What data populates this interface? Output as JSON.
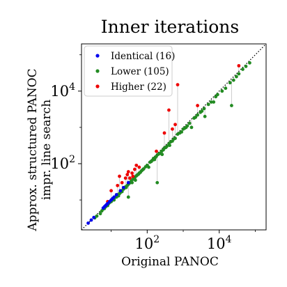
{
  "chart_data": {
    "type": "scatter",
    "title": "Inner iterations",
    "xlabel": "Original PANOC",
    "ylabel_lines": [
      "Approx. structured PANOC",
      "impr. line search"
    ],
    "xscale": "log",
    "yscale": "log",
    "xlim": [
      1.5,
      200000
    ],
    "ylim": [
      1.5,
      200000
    ],
    "x_ticks": [
      {
        "value": 100,
        "base": "10",
        "exp": "2"
      },
      {
        "value": 10000,
        "base": "10",
        "exp": "4"
      }
    ],
    "y_ticks": [
      {
        "value": 100,
        "base": "10",
        "exp": "2"
      },
      {
        "value": 10000,
        "base": "10",
        "exp": "4"
      }
    ],
    "diagonal": "y = x (dotted)",
    "legend_position": "upper-left",
    "series": [
      {
        "name": "Identical (16)",
        "color": "#0000ee",
        "points": [
          [
            2.3,
            2.3
          ],
          [
            2.8,
            2.8
          ],
          [
            3.3,
            3.3
          ],
          [
            6,
            6
          ],
          [
            6.5,
            6.5
          ],
          [
            7,
            7
          ],
          [
            7.5,
            7.5
          ],
          [
            8,
            8
          ],
          [
            9,
            9
          ],
          [
            10,
            10
          ],
          [
            11,
            11
          ],
          [
            12,
            12
          ],
          [
            14,
            14
          ],
          [
            18,
            18
          ],
          [
            22,
            22
          ],
          [
            30,
            30
          ]
        ]
      },
      {
        "name": "Lower (105)",
        "color": "#228b22",
        "points": [
          [
            3.5,
            3.2
          ],
          [
            4,
            3.6
          ],
          [
            5,
            4.2
          ],
          [
            5.5,
            5
          ],
          [
            6,
            5.6
          ],
          [
            6.5,
            5.8
          ],
          [
            7,
            6.5
          ],
          [
            8,
            7
          ],
          [
            8.5,
            8
          ],
          [
            9,
            8.5
          ],
          [
            10,
            9
          ],
          [
            11,
            10
          ],
          [
            12,
            11
          ],
          [
            12,
            10
          ],
          [
            13,
            12
          ],
          [
            14,
            13
          ],
          [
            14,
            12
          ],
          [
            15,
            14
          ],
          [
            16,
            13
          ],
          [
            17,
            15
          ],
          [
            18,
            16
          ],
          [
            19,
            18
          ],
          [
            20,
            18
          ],
          [
            20,
            17
          ],
          [
            22,
            20
          ],
          [
            23,
            21
          ],
          [
            25,
            23
          ],
          [
            26,
            22
          ],
          [
            28,
            25
          ],
          [
            30,
            27
          ],
          [
            30,
            12
          ],
          [
            32,
            29
          ],
          [
            33,
            30
          ],
          [
            35,
            31
          ],
          [
            36,
            33
          ],
          [
            38,
            30
          ],
          [
            40,
            37
          ],
          [
            42,
            38
          ],
          [
            45,
            40
          ],
          [
            47,
            35
          ],
          [
            50,
            46
          ],
          [
            52,
            48
          ],
          [
            55,
            50
          ],
          [
            58,
            52
          ],
          [
            60,
            55
          ],
          [
            65,
            58
          ],
          [
            70,
            64
          ],
          [
            75,
            68
          ],
          [
            80,
            72
          ],
          [
            90,
            82
          ],
          [
            100,
            90
          ],
          [
            110,
            80
          ],
          [
            120,
            110
          ],
          [
            130,
            115
          ],
          [
            140,
            125
          ],
          [
            150,
            140
          ],
          [
            160,
            130
          ],
          [
            170,
            150
          ],
          [
            180,
            160
          ],
          [
            190,
            30
          ],
          [
            200,
            180
          ],
          [
            220,
            190
          ],
          [
            250,
            220
          ],
          [
            260,
            180
          ],
          [
            280,
            240
          ],
          [
            300,
            270
          ],
          [
            330,
            280
          ],
          [
            350,
            300
          ],
          [
            400,
            350
          ],
          [
            420,
            320
          ],
          [
            450,
            400
          ],
          [
            500,
            420
          ],
          [
            550,
            480
          ],
          [
            600,
            500
          ],
          [
            700,
            650
          ],
          [
            800,
            700
          ],
          [
            900,
            750
          ],
          [
            1000,
            900
          ],
          [
            1100,
            950
          ],
          [
            1200,
            1000
          ],
          [
            1300,
            1100
          ],
          [
            1500,
            1300
          ],
          [
            1700,
            1000
          ],
          [
            2000,
            1800
          ],
          [
            2200,
            1900
          ],
          [
            2500,
            2200
          ],
          [
            3000,
            2600
          ],
          [
            3300,
            2800
          ],
          [
            3800,
            3300
          ],
          [
            4000,
            2000
          ],
          [
            5000,
            4300
          ],
          [
            6000,
            5000
          ],
          [
            7000,
            5000
          ],
          [
            8000,
            7000
          ],
          [
            9000,
            8000
          ],
          [
            12000,
            10000
          ],
          [
            15000,
            12000
          ],
          [
            20000,
            17000
          ],
          [
            22000,
            4000
          ],
          [
            25000,
            20000
          ],
          [
            30000,
            25000
          ],
          [
            35000,
            30000
          ],
          [
            45000,
            40000
          ],
          [
            55000,
            48000
          ],
          [
            70000,
            60000
          ]
        ]
      },
      {
        "name": "Higher (22)",
        "color": "#ee0000",
        "points": [
          [
            8,
            9
          ],
          [
            10,
            18
          ],
          [
            15,
            25
          ],
          [
            17,
            45
          ],
          [
            20,
            30
          ],
          [
            25,
            40
          ],
          [
            28,
            50
          ],
          [
            30,
            60
          ],
          [
            33,
            40
          ],
          [
            38,
            55
          ],
          [
            40,
            45
          ],
          [
            45,
            70
          ],
          [
            50,
            90
          ],
          [
            60,
            80
          ],
          [
            180,
            220
          ],
          [
            300,
            700
          ],
          [
            400,
            3000
          ],
          [
            500,
            900
          ],
          [
            600,
            1200
          ],
          [
            700,
            15000
          ],
          [
            2500,
            4000
          ],
          [
            35000,
            50000
          ]
        ]
      }
    ]
  }
}
